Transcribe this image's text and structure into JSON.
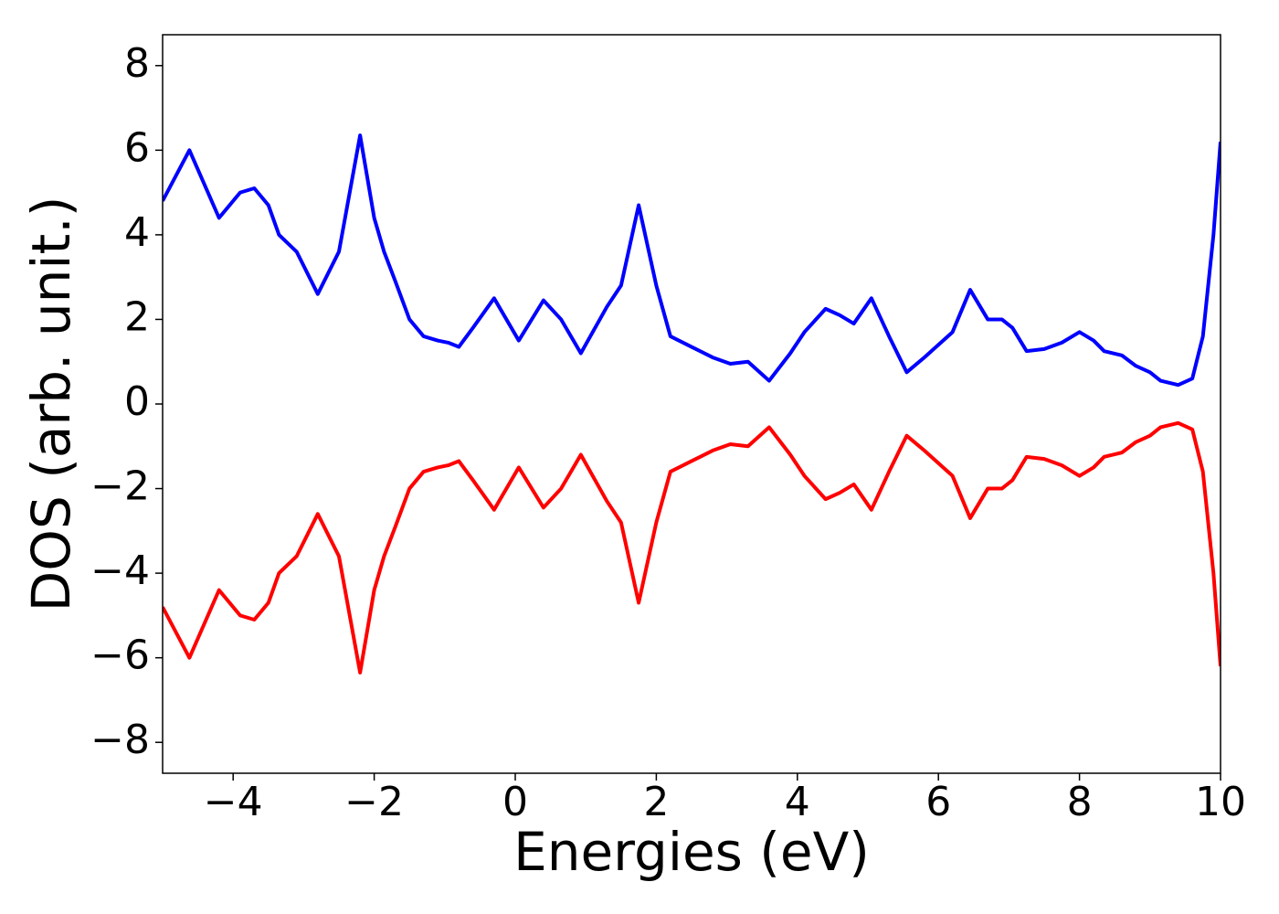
{
  "chart_data": {
    "type": "line",
    "xlabel": "Energies (eV)",
    "ylabel": "DOS (arb. unit.)",
    "x": [
      -5,
      -4.62,
      -4.2,
      -3.9,
      -3.7,
      -3.5,
      -3.35,
      -3.1,
      -2.8,
      -2.5,
      -2.2,
      -2.0,
      -1.86,
      -1.7,
      -1.5,
      -1.3,
      -1.1,
      -0.95,
      -0.8,
      -0.6,
      -0.3,
      0.05,
      0.4,
      0.65,
      0.93,
      1.3,
      1.5,
      1.75,
      2.0,
      2.2,
      2.5,
      2.8,
      3.05,
      3.3,
      3.5,
      3.6,
      3.9,
      4.1,
      4.4,
      4.6,
      4.8,
      5.05,
      5.3,
      5.55,
      5.8,
      6.0,
      6.2,
      6.45,
      6.7,
      6.9,
      7.05,
      7.25,
      7.5,
      7.75,
      8.0,
      8.2,
      8.35,
      8.6,
      8.8,
      9.0,
      9.15,
      9.4,
      9.6,
      9.75,
      9.9,
      10
    ],
    "series": [
      {
        "color": "#0000ff",
        "values": [
          4.8,
          6.0,
          4.4,
          5.0,
          5.1,
          4.7,
          4.0,
          3.6,
          2.6,
          3.6,
          6.35,
          4.4,
          3.6,
          2.9,
          2.0,
          1.6,
          1.5,
          1.45,
          1.35,
          1.8,
          2.5,
          1.5,
          2.45,
          2.0,
          1.2,
          2.3,
          2.8,
          4.7,
          2.8,
          1.6,
          1.35,
          1.1,
          0.95,
          1.0,
          0.7,
          0.55,
          1.2,
          1.7,
          2.25,
          2.1,
          1.9,
          2.5,
          1.6,
          0.75,
          1.1,
          1.4,
          1.7,
          2.7,
          2.0,
          2.0,
          1.8,
          1.25,
          1.3,
          1.45,
          1.7,
          1.5,
          1.25,
          1.15,
          0.9,
          0.75,
          0.55,
          0.45,
          0.6,
          1.6,
          4.0,
          6.2
        ]
      },
      {
        "color": "#ff0000",
        "values": [
          -4.8,
          -6.0,
          -4.4,
          -5.0,
          -5.1,
          -4.7,
          -4.0,
          -3.6,
          -2.6,
          -3.6,
          -6.35,
          -4.4,
          -3.6,
          -2.9,
          -2.0,
          -1.6,
          -1.5,
          -1.45,
          -1.35,
          -1.8,
          -2.5,
          -1.5,
          -2.45,
          -2.0,
          -1.2,
          -2.3,
          -2.8,
          -4.7,
          -2.8,
          -1.6,
          -1.35,
          -1.1,
          -0.95,
          -1.0,
          -0.7,
          -0.55,
          -1.2,
          -1.7,
          -2.25,
          -2.1,
          -1.9,
          -2.5,
          -1.6,
          -0.75,
          -1.1,
          -1.4,
          -1.7,
          -2.7,
          -2.0,
          -2.0,
          -1.8,
          -1.25,
          -1.3,
          -1.45,
          -1.7,
          -1.5,
          -1.25,
          -1.15,
          -0.9,
          -0.75,
          -0.55,
          -0.45,
          -0.6,
          -1.6,
          -4.0,
          -6.2
        ]
      }
    ],
    "xlim": [
      -5,
      10
    ],
    "xticks": [
      {
        "value": -4,
        "label": "−4"
      },
      {
        "value": -2,
        "label": "−2"
      },
      0,
      2,
      4,
      6,
      8,
      10
    ],
    "ylim": [
      -8.73,
      8.73
    ],
    "yticks": [
      {
        "value": -8,
        "label": "−8"
      },
      {
        "value": -6,
        "label": "−6"
      },
      {
        "value": -4,
        "label": "−4"
      },
      {
        "value": -2,
        "label": "−2"
      },
      0,
      2,
      4,
      6,
      8
    ]
  }
}
